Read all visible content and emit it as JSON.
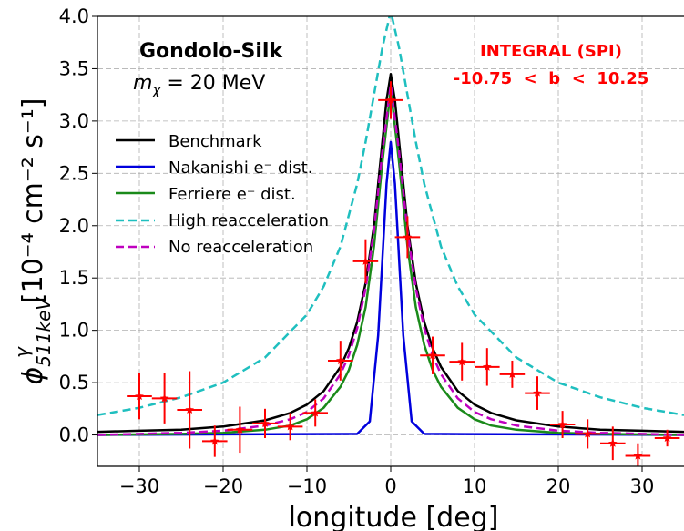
{
  "chart_data": {
    "type": "line",
    "xlabel": "longitude [deg]",
    "ylabel_main": "ϕ",
    "ylabel_sup": "γ",
    "ylabel_sub": "511keV",
    "ylabel_unit": "[10⁻⁴ cm⁻² s⁻¹]",
    "xlim": [
      -35,
      35
    ],
    "ylim": [
      -0.3,
      4.0
    ],
    "x_ticks": [
      -30,
      -20,
      -10,
      0,
      10,
      20,
      30
    ],
    "x_tick_labels": [
      "−30",
      "−20",
      "−10",
      "0",
      "10",
      "20",
      "30"
    ],
    "y_ticks": [
      0.0,
      0.5,
      1.0,
      1.5,
      2.0,
      2.5,
      3.0,
      3.5,
      4.0
    ],
    "y_tick_labels": [
      "0.0",
      "0.5",
      "1.0",
      "1.5",
      "2.0",
      "2.5",
      "3.0",
      "3.5",
      "4.0"
    ],
    "grid": true,
    "legend_position": "upper-left",
    "annotations": {
      "profile": "Gondolo-Silk",
      "mass_label": "m",
      "mass_sub": "χ",
      "mass_value": " = 20 MeV",
      "instrument": "INTEGRAL (SPI)",
      "latitude_range": "-10.75  <  b  <  10.25"
    },
    "series": [
      {
        "name": "Benchmark",
        "color": "#000000",
        "style": "solid",
        "x": [
          -35,
          -30,
          -25,
          -20,
          -15,
          -12,
          -10,
          -8,
          -6,
          -5,
          -4,
          -3,
          -2,
          -1,
          -0.5,
          0,
          0.5,
          1,
          2,
          3,
          4,
          5,
          6,
          8,
          10,
          12,
          15,
          20,
          25,
          30,
          35
        ],
        "y": [
          0.03,
          0.04,
          0.05,
          0.08,
          0.14,
          0.21,
          0.29,
          0.42,
          0.65,
          0.83,
          1.08,
          1.45,
          2.0,
          2.8,
          3.2,
          3.45,
          3.2,
          2.8,
          2.0,
          1.45,
          1.08,
          0.83,
          0.65,
          0.42,
          0.29,
          0.21,
          0.14,
          0.08,
          0.05,
          0.04,
          0.03
        ]
      },
      {
        "name": "Nakanishi e⁻ dist.",
        "color": "#0000dd",
        "style": "solid",
        "x": [
          -35,
          -4,
          -2.5,
          -1.5,
          -0.5,
          0,
          0.5,
          1.5,
          2.5,
          4,
          35
        ],
        "y": [
          0.0,
          0.01,
          0.13,
          0.95,
          2.4,
          2.8,
          2.4,
          0.95,
          0.13,
          0.01,
          0.0
        ]
      },
      {
        "name": "Ferriere e⁻ dist.",
        "color": "#1a8a1a",
        "style": "solid",
        "x": [
          -35,
          -25,
          -20,
          -15,
          -12,
          -10,
          -8,
          -6,
          -5,
          -4,
          -3,
          -2,
          -1,
          0,
          1,
          2,
          3,
          4,
          5,
          6,
          8,
          10,
          12,
          15,
          20,
          25,
          35
        ],
        "y": [
          0.0,
          0.01,
          0.02,
          0.05,
          0.09,
          0.15,
          0.26,
          0.46,
          0.62,
          0.86,
          1.22,
          1.8,
          2.6,
          3.3,
          2.6,
          1.8,
          1.22,
          0.86,
          0.62,
          0.46,
          0.26,
          0.15,
          0.09,
          0.05,
          0.02,
          0.01,
          0.0
        ]
      },
      {
        "name": "High reacceleration",
        "color": "#1fbfbf",
        "style": "dashed",
        "x": [
          -35,
          -30,
          -25,
          -20,
          -15,
          -10,
          -8,
          -6,
          -4,
          -3,
          -2,
          -1,
          0,
          1,
          2,
          3,
          4,
          6,
          8,
          10,
          15,
          20,
          25,
          30,
          35
        ],
        "y": [
          0.19,
          0.26,
          0.36,
          0.5,
          0.74,
          1.15,
          1.42,
          1.8,
          2.4,
          2.8,
          3.25,
          3.7,
          4.05,
          3.7,
          3.25,
          2.8,
          2.4,
          1.8,
          1.42,
          1.15,
          0.74,
          0.5,
          0.36,
          0.26,
          0.19
        ]
      },
      {
        "name": "No reacceleration",
        "color": "#bf00bf",
        "style": "dashed",
        "x": [
          -35,
          -30,
          -25,
          -20,
          -15,
          -12,
          -10,
          -8,
          -6,
          -5,
          -4,
          -3,
          -2,
          -1,
          0,
          1,
          2,
          3,
          4,
          5,
          6,
          8,
          10,
          12,
          15,
          20,
          25,
          30,
          35
        ],
        "y": [
          0.0,
          0.01,
          0.02,
          0.04,
          0.09,
          0.15,
          0.22,
          0.35,
          0.58,
          0.76,
          1.02,
          1.4,
          1.95,
          2.7,
          3.35,
          2.7,
          1.95,
          1.4,
          1.02,
          0.76,
          0.58,
          0.35,
          0.22,
          0.15,
          0.09,
          0.04,
          0.02,
          0.01,
          0.0
        ]
      }
    ],
    "data_points": {
      "name": "INTEGRAL (SPI)",
      "color": "#ff0000",
      "x_err": 1.5,
      "points": [
        {
          "x": -30.0,
          "y": 0.37,
          "yerr": 0.22
        },
        {
          "x": -27.0,
          "y": 0.35,
          "yerr": 0.24
        },
        {
          "x": -24.0,
          "y": 0.24,
          "yerr": 0.37
        },
        {
          "x": -21.0,
          "y": -0.06,
          "yerr": 0.15
        },
        {
          "x": -18.0,
          "y": 0.05,
          "yerr": 0.22
        },
        {
          "x": -15.0,
          "y": 0.11,
          "yerr": 0.14
        },
        {
          "x": -12.0,
          "y": 0.08,
          "yerr": 0.13
        },
        {
          "x": -9.0,
          "y": 0.21,
          "yerr": 0.13
        },
        {
          "x": -6.0,
          "y": 0.71,
          "yerr": 0.19
        },
        {
          "x": -3.0,
          "y": 1.66,
          "yerr": 0.21
        },
        {
          "x": 0.0,
          "y": 3.2,
          "yerr": 0.18
        },
        {
          "x": 2.0,
          "y": 1.89,
          "yerr": 0.2
        },
        {
          "x": 5.0,
          "y": 0.76,
          "yerr": 0.18
        },
        {
          "x": 8.5,
          "y": 0.7,
          "yerr": 0.18
        },
        {
          "x": 11.5,
          "y": 0.65,
          "yerr": 0.18
        },
        {
          "x": 14.5,
          "y": 0.58,
          "yerr": 0.13
        },
        {
          "x": 17.5,
          "y": 0.4,
          "yerr": 0.16
        },
        {
          "x": 20.5,
          "y": 0.1,
          "yerr": 0.13
        },
        {
          "x": 23.5,
          "y": 0.01,
          "yerr": 0.14
        },
        {
          "x": 26.5,
          "y": -0.08,
          "yerr": 0.16
        },
        {
          "x": 29.5,
          "y": -0.2,
          "yerr": 0.12
        },
        {
          "x": 33.0,
          "y": -0.03,
          "yerr": 0.08
        }
      ]
    }
  }
}
